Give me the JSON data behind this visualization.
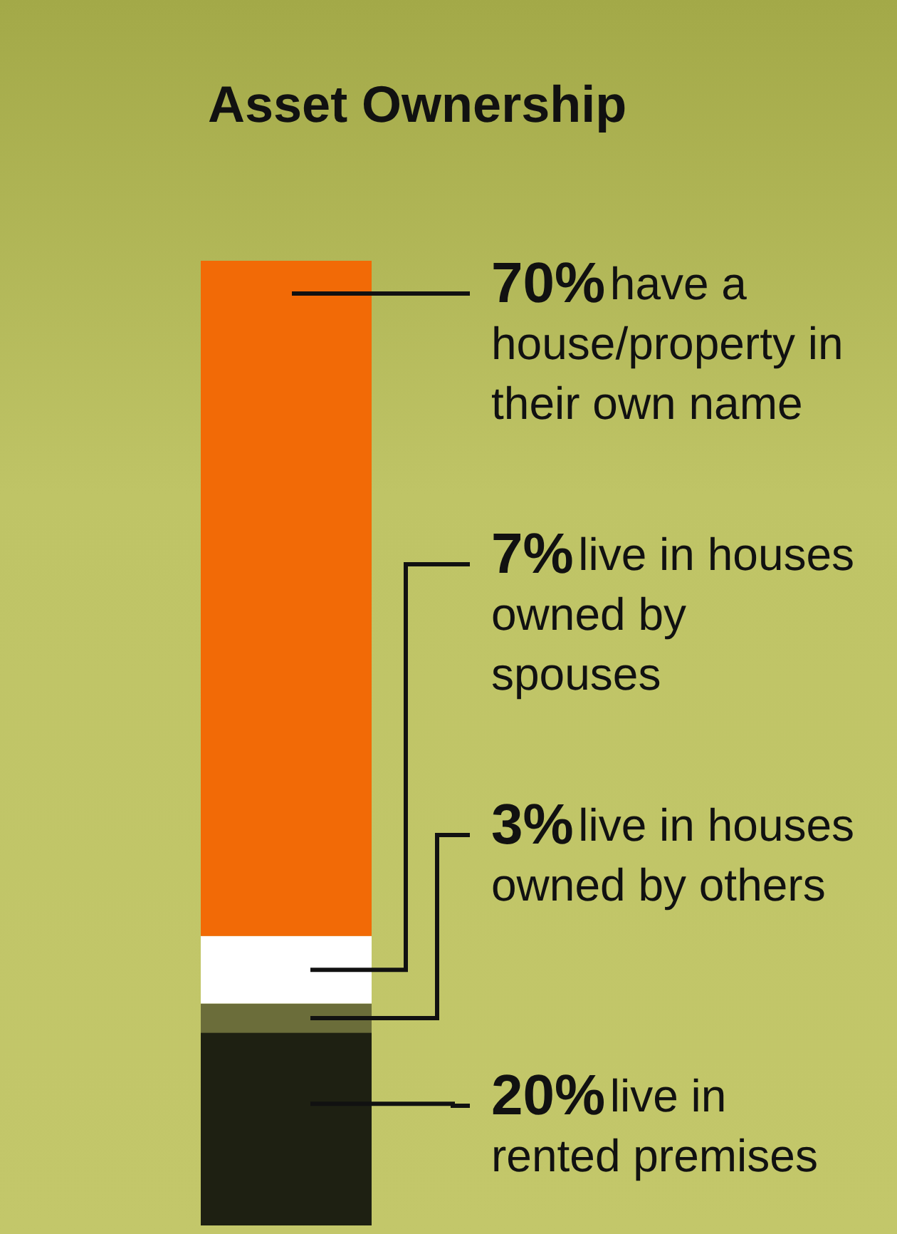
{
  "chart_data": {
    "type": "bar",
    "title": "Asset Ownership",
    "stacked": true,
    "categories": [
      null
    ],
    "ylim": [
      0,
      100
    ],
    "tick_labels": false,
    "series": [
      {
        "name": "live in rented premises",
        "color": "#1e2012",
        "values": [
          20
        ],
        "value_labels": [
          "20%"
        ]
      },
      {
        "name": "live in houses owned by others",
        "color": "#6b6d3a",
        "values": [
          3
        ],
        "value_labels": [
          "3%"
        ]
      },
      {
        "name": "live in houses owned by spouses",
        "color": "#ffffff",
        "values": [
          7
        ],
        "value_labels": [
          "7%"
        ]
      },
      {
        "name": "have a house/property in their own name",
        "color": "#f26a06",
        "values": [
          70
        ],
        "value_labels": [
          "70%"
        ]
      }
    ]
  }
}
